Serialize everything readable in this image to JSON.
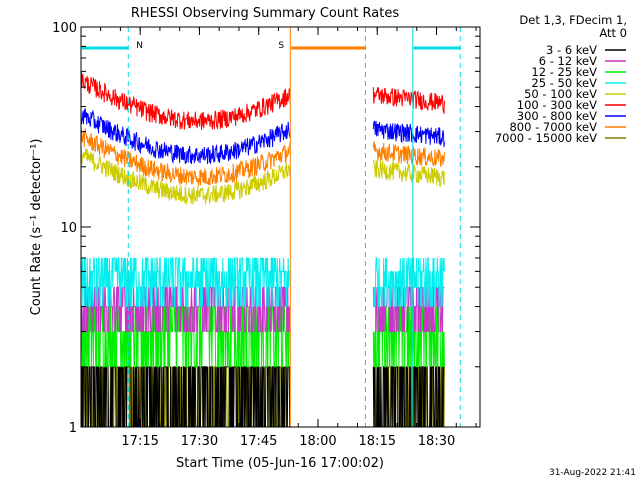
{
  "chart_data": {
    "type": "line",
    "title": "RHESSI Observing Summary Count Rates",
    "xlabel": "Start Time (05-Jun-16 17:00:02)",
    "ylabel": "Count Rate (s⁻¹ detector⁻¹)",
    "y_scale": "log",
    "ylim": [
      1,
      100
    ],
    "xlim": [
      "17:00:02",
      "18:41"
    ],
    "x_ticks": [
      "17:15",
      "17:30",
      "17:45",
      "18:00",
      "18:15",
      "18:30"
    ],
    "y_ticks": [
      "1",
      "10",
      "100"
    ],
    "data_gap": [
      "17:53",
      "18:14"
    ],
    "legend_header": [
      "Det 1,3, FDecim 1,",
      "Att 0"
    ],
    "series": [
      {
        "name": "3 - 6 keV",
        "color": "#000000",
        "level": 1.0
      },
      {
        "name": "6 - 12 keV",
        "color": "#cc33cc",
        "level": 4.0
      },
      {
        "name": "12 - 25 keV",
        "color": "#00ee00",
        "level": 3.0
      },
      {
        "name": "25 - 50 keV",
        "color": "#00eeee",
        "level": 5.0
      },
      {
        "name": "50 - 100 keV",
        "color": "#cccc00",
        "level": 17
      },
      {
        "name": "100 - 300 keV",
        "color": "#ff0000",
        "level": 40
      },
      {
        "name": "300 - 800 keV",
        "color": "#0000ff",
        "level": 27
      },
      {
        "name": "800 - 7000 keV",
        "color": "#ff7f00",
        "level": 21
      },
      {
        "name": "7000 - 15000 keV",
        "color": "#808000",
        "level": 1.5
      }
    ],
    "markers": [
      {
        "label": "N",
        "color": "#00dddd",
        "start": "17:00:02",
        "end": "17:12"
      },
      {
        "label": "S",
        "color": "#ff7f00",
        "start": "17:53",
        "end": "18:12"
      },
      {
        "label": "",
        "color": "#00dddd",
        "start": "18:24",
        "end": "18:36"
      }
    ],
    "timestamp": "31-Aug-2022 21:41"
  }
}
